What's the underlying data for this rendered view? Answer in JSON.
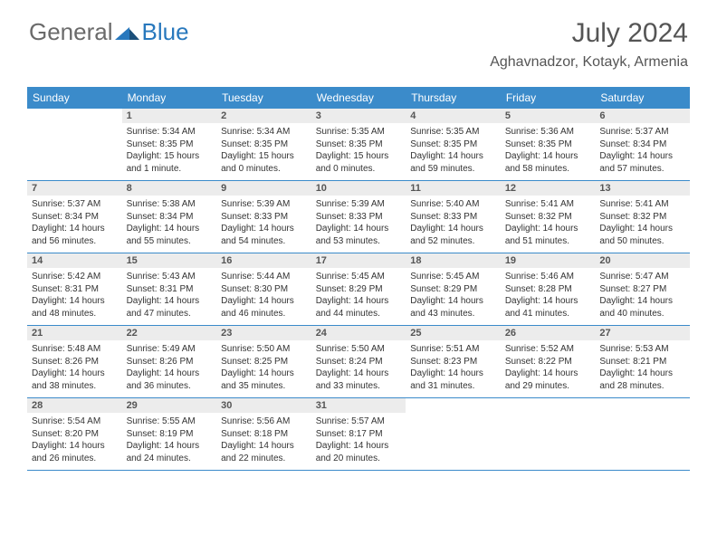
{
  "logo": {
    "general": "General",
    "blue": "Blue"
  },
  "title": "July 2024",
  "location": "Aghavnadzor, Kotayk, Armenia",
  "weekday_header_bg": "#3b8bca",
  "weekday_header_fg": "#ffffff",
  "daynum_bg": "#ececec",
  "weekdays": [
    "Sunday",
    "Monday",
    "Tuesday",
    "Wednesday",
    "Thursday",
    "Friday",
    "Saturday"
  ],
  "days": [
    {
      "n": 1,
      "sr": "5:34 AM",
      "ss": "8:35 PM",
      "dl": "15 hours and 1 minute."
    },
    {
      "n": 2,
      "sr": "5:34 AM",
      "ss": "8:35 PM",
      "dl": "15 hours and 0 minutes."
    },
    {
      "n": 3,
      "sr": "5:35 AM",
      "ss": "8:35 PM",
      "dl": "15 hours and 0 minutes."
    },
    {
      "n": 4,
      "sr": "5:35 AM",
      "ss": "8:35 PM",
      "dl": "14 hours and 59 minutes."
    },
    {
      "n": 5,
      "sr": "5:36 AM",
      "ss": "8:35 PM",
      "dl": "14 hours and 58 minutes."
    },
    {
      "n": 6,
      "sr": "5:37 AM",
      "ss": "8:34 PM",
      "dl": "14 hours and 57 minutes."
    },
    {
      "n": 7,
      "sr": "5:37 AM",
      "ss": "8:34 PM",
      "dl": "14 hours and 56 minutes."
    },
    {
      "n": 8,
      "sr": "5:38 AM",
      "ss": "8:34 PM",
      "dl": "14 hours and 55 minutes."
    },
    {
      "n": 9,
      "sr": "5:39 AM",
      "ss": "8:33 PM",
      "dl": "14 hours and 54 minutes."
    },
    {
      "n": 10,
      "sr": "5:39 AM",
      "ss": "8:33 PM",
      "dl": "14 hours and 53 minutes."
    },
    {
      "n": 11,
      "sr": "5:40 AM",
      "ss": "8:33 PM",
      "dl": "14 hours and 52 minutes."
    },
    {
      "n": 12,
      "sr": "5:41 AM",
      "ss": "8:32 PM",
      "dl": "14 hours and 51 minutes."
    },
    {
      "n": 13,
      "sr": "5:41 AM",
      "ss": "8:32 PM",
      "dl": "14 hours and 50 minutes."
    },
    {
      "n": 14,
      "sr": "5:42 AM",
      "ss": "8:31 PM",
      "dl": "14 hours and 48 minutes."
    },
    {
      "n": 15,
      "sr": "5:43 AM",
      "ss": "8:31 PM",
      "dl": "14 hours and 47 minutes."
    },
    {
      "n": 16,
      "sr": "5:44 AM",
      "ss": "8:30 PM",
      "dl": "14 hours and 46 minutes."
    },
    {
      "n": 17,
      "sr": "5:45 AM",
      "ss": "8:29 PM",
      "dl": "14 hours and 44 minutes."
    },
    {
      "n": 18,
      "sr": "5:45 AM",
      "ss": "8:29 PM",
      "dl": "14 hours and 43 minutes."
    },
    {
      "n": 19,
      "sr": "5:46 AM",
      "ss": "8:28 PM",
      "dl": "14 hours and 41 minutes."
    },
    {
      "n": 20,
      "sr": "5:47 AM",
      "ss": "8:27 PM",
      "dl": "14 hours and 40 minutes."
    },
    {
      "n": 21,
      "sr": "5:48 AM",
      "ss": "8:26 PM",
      "dl": "14 hours and 38 minutes."
    },
    {
      "n": 22,
      "sr": "5:49 AM",
      "ss": "8:26 PM",
      "dl": "14 hours and 36 minutes."
    },
    {
      "n": 23,
      "sr": "5:50 AM",
      "ss": "8:25 PM",
      "dl": "14 hours and 35 minutes."
    },
    {
      "n": 24,
      "sr": "5:50 AM",
      "ss": "8:24 PM",
      "dl": "14 hours and 33 minutes."
    },
    {
      "n": 25,
      "sr": "5:51 AM",
      "ss": "8:23 PM",
      "dl": "14 hours and 31 minutes."
    },
    {
      "n": 26,
      "sr": "5:52 AM",
      "ss": "8:22 PM",
      "dl": "14 hours and 29 minutes."
    },
    {
      "n": 27,
      "sr": "5:53 AM",
      "ss": "8:21 PM",
      "dl": "14 hours and 28 minutes."
    },
    {
      "n": 28,
      "sr": "5:54 AM",
      "ss": "8:20 PM",
      "dl": "14 hours and 26 minutes."
    },
    {
      "n": 29,
      "sr": "5:55 AM",
      "ss": "8:19 PM",
      "dl": "14 hours and 24 minutes."
    },
    {
      "n": 30,
      "sr": "5:56 AM",
      "ss": "8:18 PM",
      "dl": "14 hours and 22 minutes."
    },
    {
      "n": 31,
      "sr": "5:57 AM",
      "ss": "8:17 PM",
      "dl": "14 hours and 20 minutes."
    }
  ],
  "labels": {
    "sunrise": "Sunrise: ",
    "sunset": "Sunset: ",
    "daylight": "Daylight: "
  },
  "first_day_column": 1,
  "columns": 7
}
